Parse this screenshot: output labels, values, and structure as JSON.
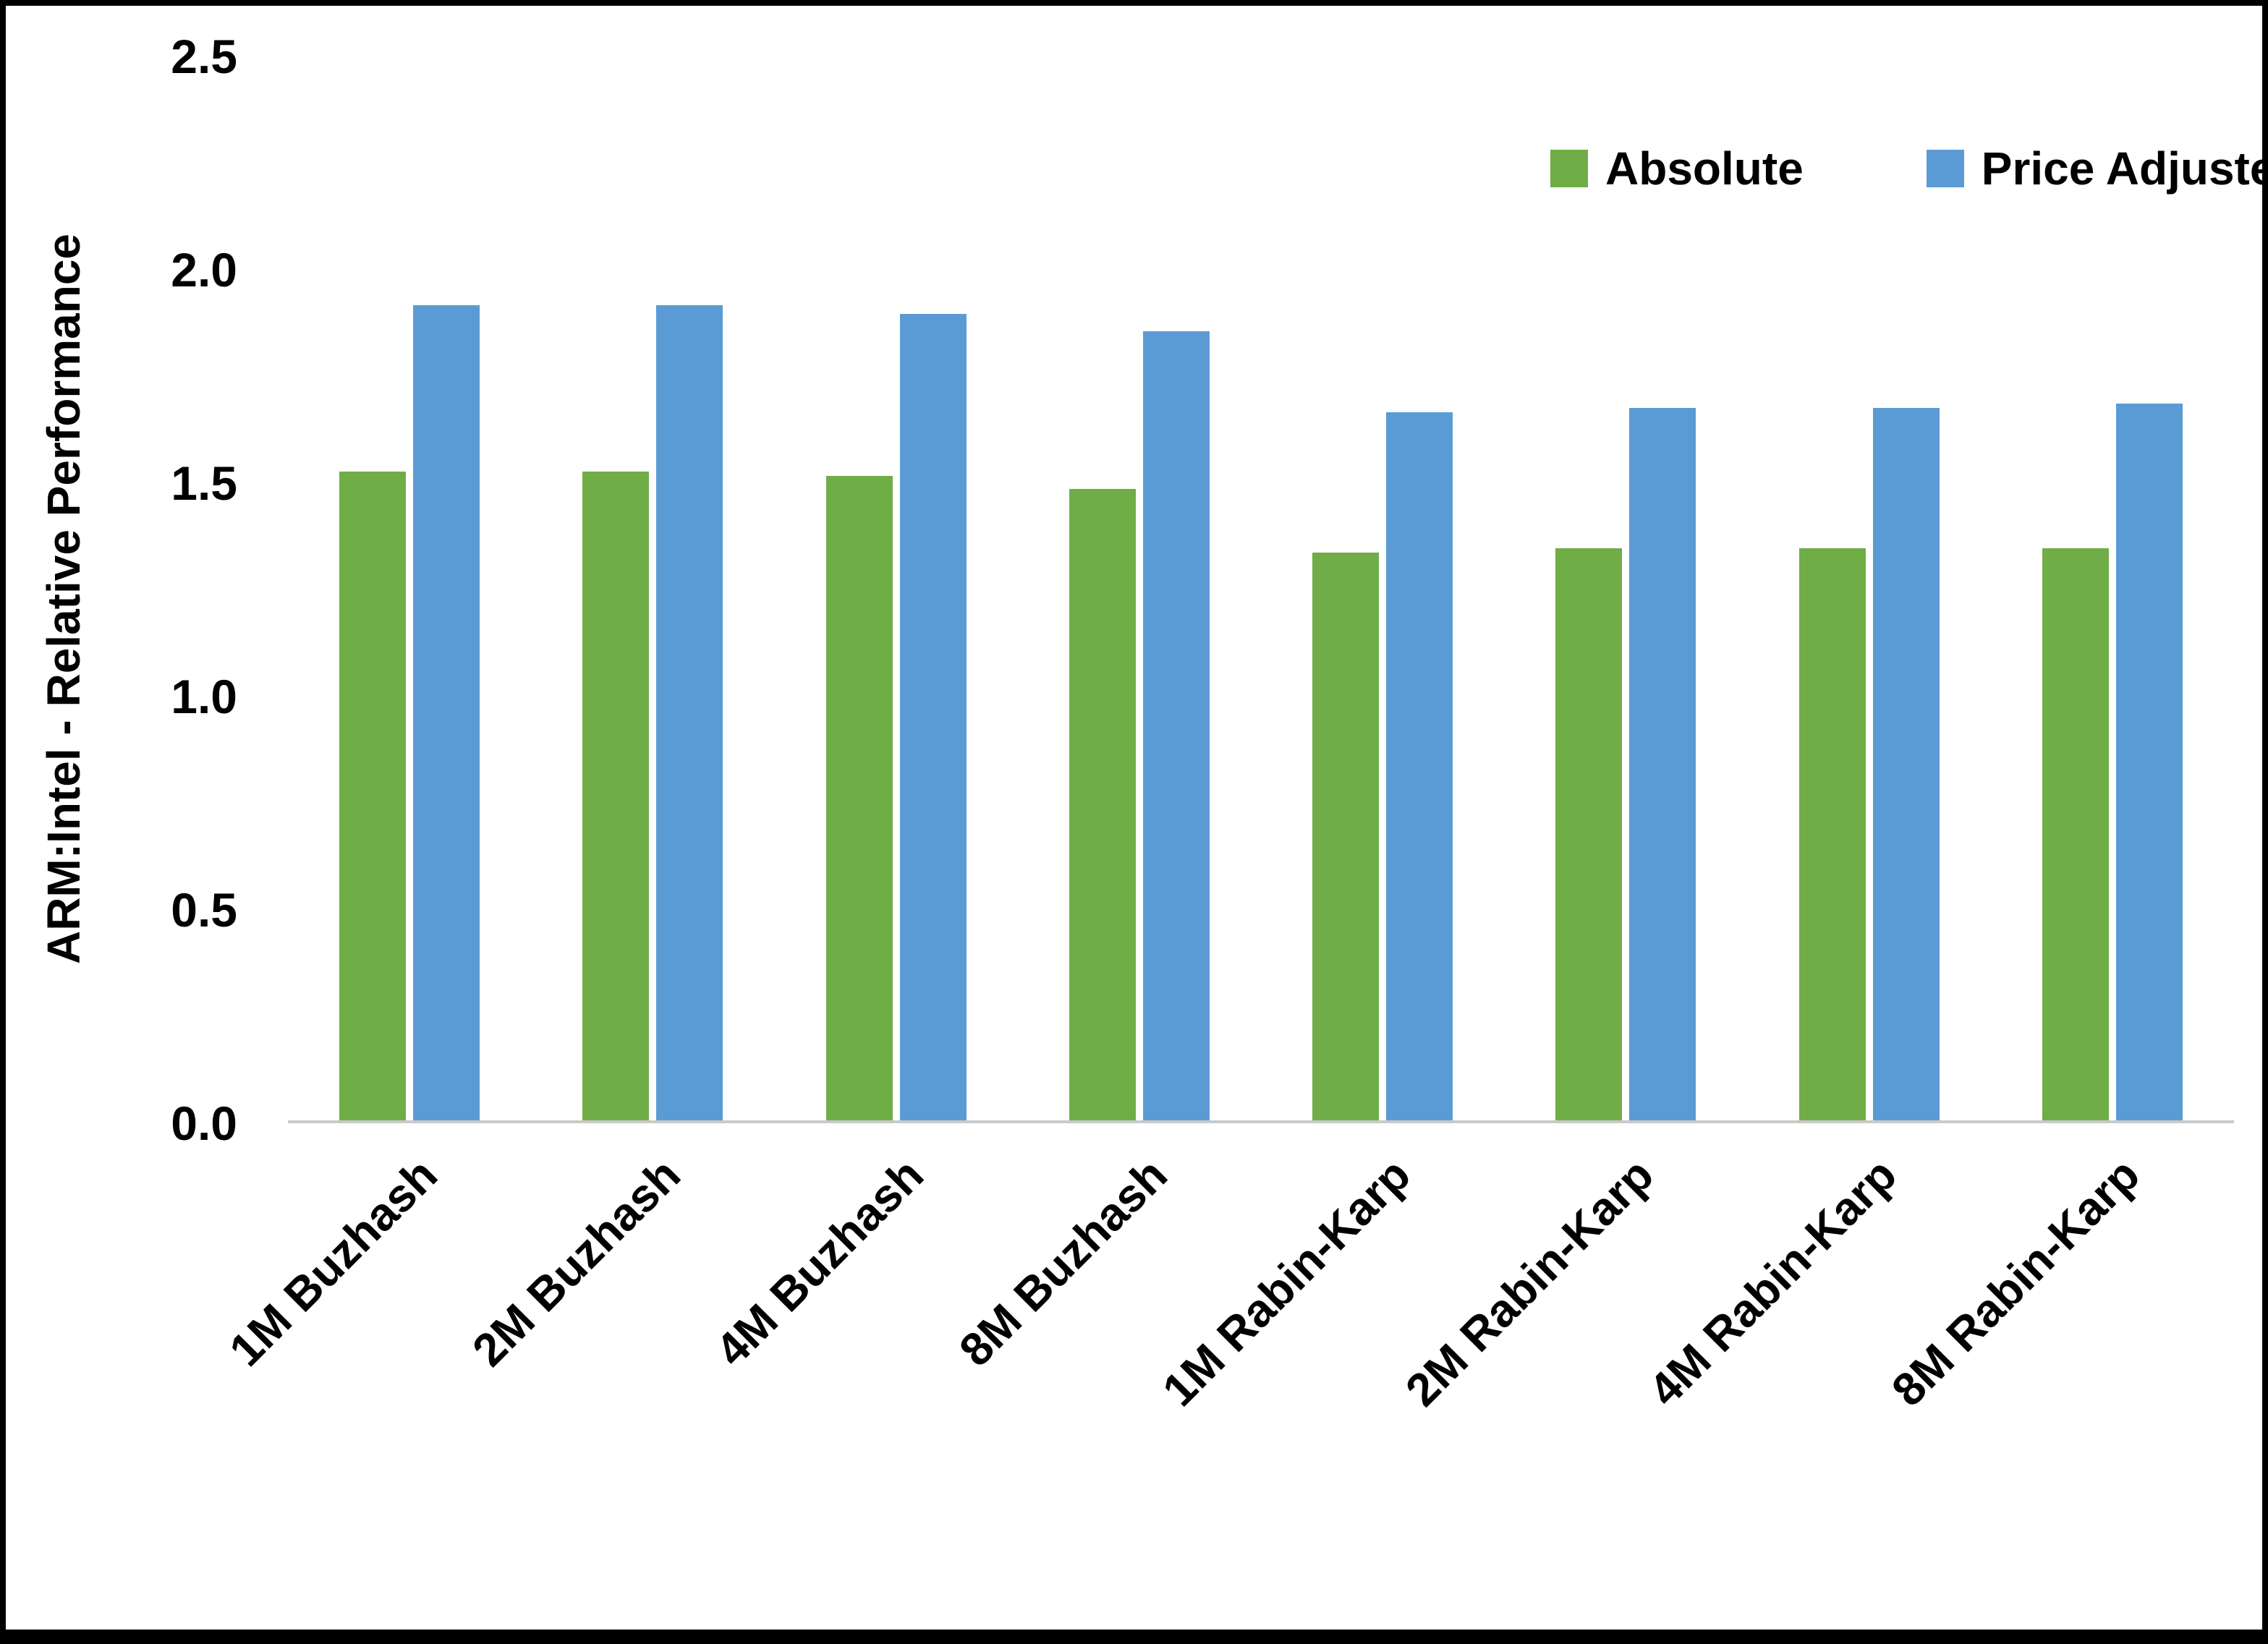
{
  "chart_data": {
    "type": "bar",
    "title": "",
    "xlabel": "",
    "ylabel": "ARM:Intel - Relative Performance",
    "ylim": [
      0,
      2.5
    ],
    "ytick_labels": [
      "0.0",
      "0.5",
      "1.0",
      "1.5",
      "2.0",
      "2.5"
    ],
    "yticks": [
      0.0,
      0.5,
      1.0,
      1.5,
      2.0,
      2.5
    ],
    "grid": false,
    "legend_position": "top-right",
    "categories": [
      "1M Buzhash",
      "2M Buzhash",
      "4M Buzhash",
      "8M Buzhash",
      "1M Rabin-Karp",
      "2M Rabin-Karp",
      "4M Rabin-Karp",
      "8M Rabin-Karp"
    ],
    "series": [
      {
        "name": "Absolute",
        "color": "#70AD47",
        "values": [
          1.52,
          1.52,
          1.51,
          1.48,
          1.33,
          1.34,
          1.34,
          1.34
        ]
      },
      {
        "name": "Price Adjusted",
        "color": "#5B9BD5",
        "values": [
          1.91,
          1.91,
          1.89,
          1.85,
          1.66,
          1.67,
          1.67,
          1.68
        ]
      }
    ],
    "colors": {
      "absolute": "#70AD47",
      "price_adjusted": "#5B9BD5",
      "axis_line": "#c9c9c9",
      "text": "#000000"
    }
  }
}
